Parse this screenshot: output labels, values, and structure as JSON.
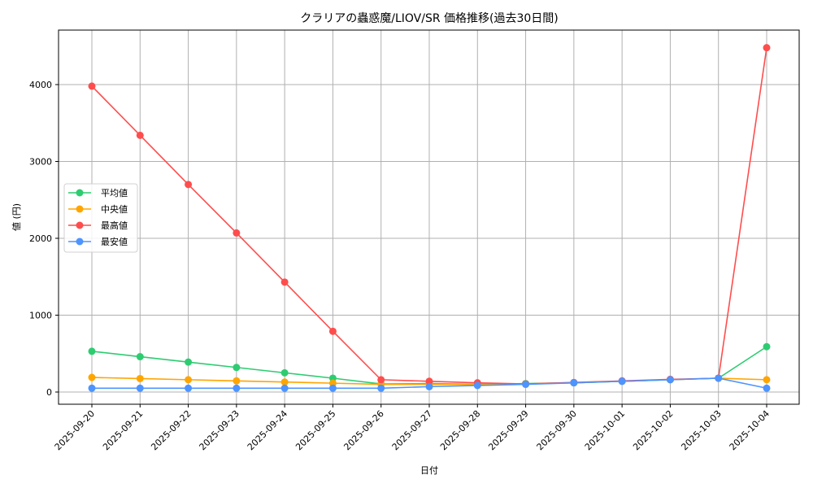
{
  "chart_data": {
    "type": "line",
    "title": "クラリアの蟲惑魔/LIOV/SR 価格推移(過去30日間)",
    "xlabel": "日付",
    "ylabel": "値 (円)",
    "ylim": [
      -170,
      4710
    ],
    "yticks": [
      0,
      1000,
      2000,
      3000,
      4000
    ],
    "grid": true,
    "legend_position": "center-left",
    "categories": [
      "2025-09-20",
      "2025-09-21",
      "2025-09-22",
      "2025-09-23",
      "2025-09-24",
      "2025-09-25",
      "2025-09-26",
      "2025-09-27",
      "2025-09-28",
      "2025-09-29",
      "2025-09-30",
      "2025-10-01",
      "2025-10-02",
      "2025-10-03",
      "2025-10-04"
    ],
    "series": [
      {
        "name": "平均値",
        "color": "#2ecc71",
        "values": [
          530,
          460,
          390,
          320,
          250,
          180,
          105,
          110,
          100,
          110,
          120,
          140,
          160,
          180,
          590
        ]
      },
      {
        "name": "中央値",
        "color": "#ffa500",
        "values": [
          190,
          175,
          160,
          145,
          130,
          115,
          100,
          100,
          100,
          105,
          120,
          140,
          160,
          180,
          160
        ]
      },
      {
        "name": "最高値",
        "color": "#ff4d4d",
        "values": [
          3980,
          3340,
          2700,
          2070,
          1430,
          790,
          160,
          140,
          120,
          105,
          125,
          145,
          165,
          180,
          4480
        ]
      },
      {
        "name": "最安値",
        "color": "#4d94ff",
        "values": [
          50,
          50,
          50,
          50,
          50,
          50,
          50,
          70,
          85,
          100,
          120,
          140,
          160,
          180,
          50
        ]
      }
    ]
  }
}
